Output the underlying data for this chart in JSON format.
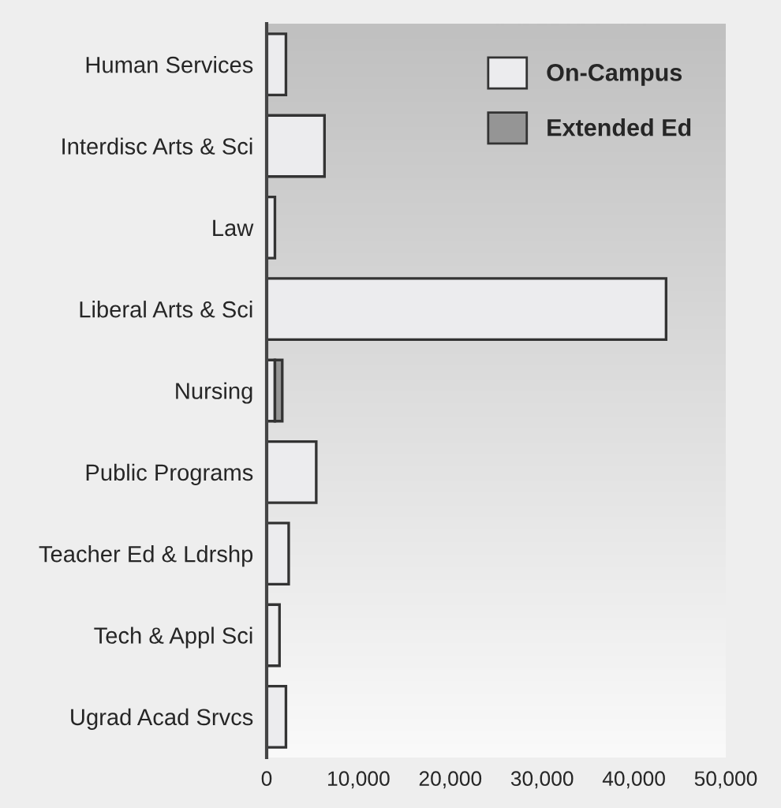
{
  "chart_data": {
    "type": "bar",
    "orientation": "horizontal",
    "stacked": true,
    "categories": [
      "Human Services",
      "Interdisc Arts & Sci",
      "Law",
      "Liberal Arts & Sci",
      "Nursing",
      "Public Programs",
      "Teacher Ed & Ldrshp",
      "Tech & Appl Sci",
      "Ugrad Acad Srvcs"
    ],
    "series": [
      {
        "name": "On-Campus",
        "color": "#ececee",
        "values": [
          2100,
          6300,
          900,
          43500,
          900,
          5400,
          2400,
          1400,
          2100
        ]
      },
      {
        "name": "Extended Ed",
        "color": "#959595",
        "values": [
          null,
          null,
          null,
          null,
          800,
          null,
          null,
          null,
          null
        ]
      }
    ],
    "xlim": [
      0,
      50000
    ],
    "xticks": [
      {
        "value": 0,
        "label": "0"
      },
      {
        "value": 10000,
        "label": "10,000"
      },
      {
        "value": 20000,
        "label": "20,000"
      },
      {
        "value": 30000,
        "label": "30,000"
      },
      {
        "value": 40000,
        "label": "40,000"
      },
      {
        "value": 50000,
        "label": "50,000"
      }
    ],
    "legend": "top right",
    "grid": false
  }
}
